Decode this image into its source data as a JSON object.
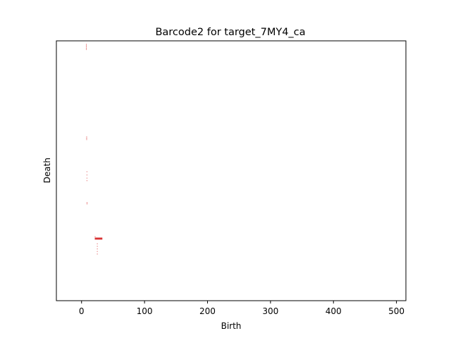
{
  "chart_data": {
    "type": "barcode",
    "title": "Barcode2 for target_7MY4_ca",
    "xlabel": "Birth",
    "ylabel": "Death",
    "xlim": [
      -40,
      515
    ],
    "x_ticks": [
      0,
      100,
      200,
      300,
      400,
      500
    ],
    "x_tick_labels": [
      "0",
      "100",
      "200",
      "300",
      "400",
      "500"
    ],
    "y_ticks_visible": false,
    "grid": false,
    "bar_color": "#d62728",
    "bar_count": 404,
    "bars": [
      {
        "start": 7.0,
        "end": 7.9,
        "index": 390
      },
      {
        "start": 7.0,
        "end": 7.9,
        "index": 392
      },
      {
        "start": 7.0,
        "end": 7.9,
        "index": 394
      },
      {
        "start": 7.0,
        "end": 7.9,
        "index": 396
      },
      {
        "start": 7.0,
        "end": 7.9,
        "index": 398
      },
      {
        "start": 7.6,
        "end": 8.6,
        "index": 250
      },
      {
        "start": 7.6,
        "end": 8.6,
        "index": 252
      },
      {
        "start": 7.6,
        "end": 8.6,
        "index": 254
      },
      {
        "start": 8.0,
        "end": 8.9,
        "index": 200
      },
      {
        "start": 8.0,
        "end": 8.9,
        "index": 195
      },
      {
        "start": 8.0,
        "end": 8.9,
        "index": 190
      },
      {
        "start": 8.0,
        "end": 8.9,
        "index": 186
      },
      {
        "start": 8.2,
        "end": 9.2,
        "index": 150
      },
      {
        "start": 8.2,
        "end": 9.2,
        "index": 152
      },
      {
        "start": 21.0,
        "end": 22.0,
        "index": 99
      },
      {
        "start": 21.0,
        "end": 33.0,
        "index": 97
      },
      {
        "start": 21.0,
        "end": 33.0,
        "index": 96
      },
      {
        "start": 21.0,
        "end": 33.0,
        "index": 95
      },
      {
        "start": 24.5,
        "end": 25.5,
        "index": 88
      },
      {
        "start": 24.5,
        "end": 25.5,
        "index": 84
      },
      {
        "start": 24.5,
        "end": 25.5,
        "index": 80
      },
      {
        "start": 24.5,
        "end": 25.5,
        "index": 76
      },
      {
        "start": 24.5,
        "end": 25.5,
        "index": 72
      }
    ]
  }
}
